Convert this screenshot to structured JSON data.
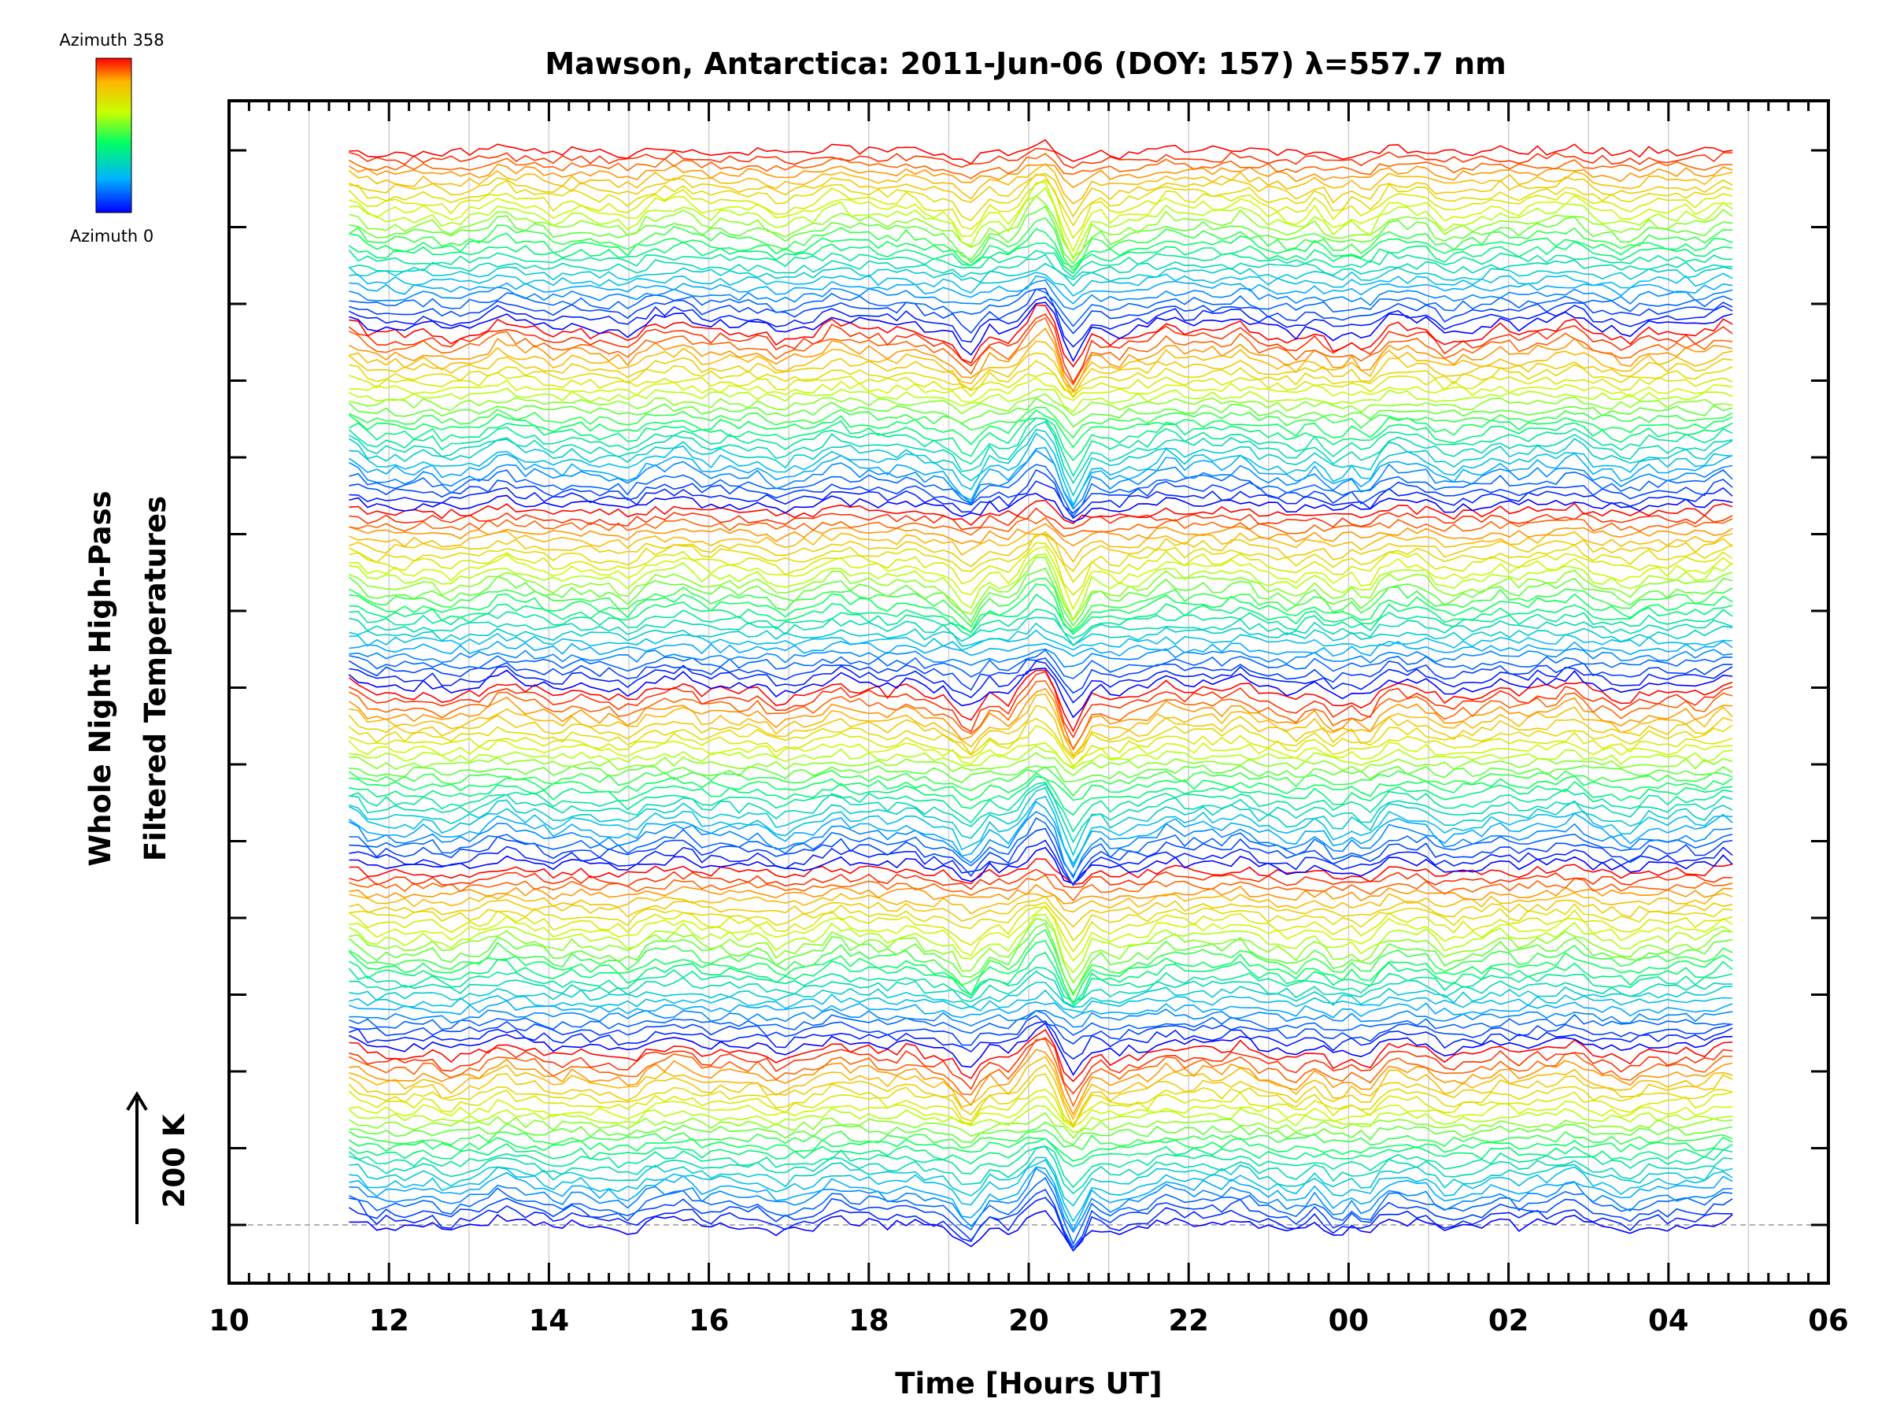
{
  "chart_data": {
    "type": "line",
    "title": "Mawson, Antarctica: 2011-Jun-06 (DOY: 157) λ=557.7 nm",
    "xlabel": "Time [Hours UT]",
    "ylabel_line1": "Whole Night High-Pass",
    "ylabel_line2": "Filtered Temperatures",
    "scale_label": "200 K",
    "x_tick_labels": [
      "10",
      "12",
      "14",
      "16",
      "18",
      "20",
      "22",
      "00",
      "02",
      "04",
      "06"
    ],
    "x_ticks_hours": [
      10,
      12,
      14,
      16,
      18,
      20,
      22,
      24,
      26,
      28,
      30
    ],
    "xlim": [
      10,
      30
    ],
    "data_time_range": [
      11.5,
      28.8
    ],
    "series_count": 150,
    "grid": "vertical, hourly",
    "colorbar": {
      "label_top": "Azimuth 358",
      "label_bottom": "Azimuth 0",
      "colors": [
        "#0000ff",
        "#00b4ff",
        "#00ff64",
        "#c8ff00",
        "#ffb400",
        "#ff0000"
      ]
    },
    "events": [
      {
        "time": 19.3,
        "amplitude": -1.3
      },
      {
        "time": 19.75,
        "amplitude": -1.0
      },
      {
        "time": 20.15,
        "amplitude": 1.6
      },
      {
        "time": 20.55,
        "amplitude": -2.4
      },
      {
        "time": 23.85,
        "amplitude": -1.0
      },
      {
        "time": 24.2,
        "amplitude": -0.9
      }
    ]
  }
}
